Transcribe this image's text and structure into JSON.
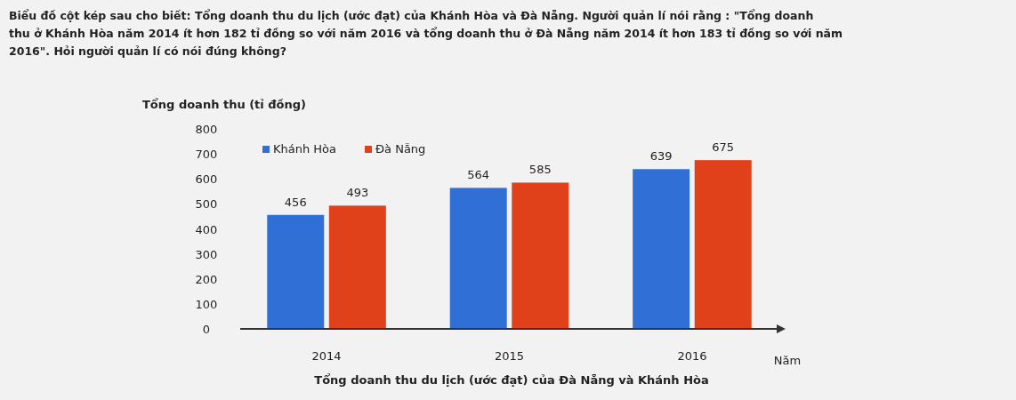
{
  "chart_data": {
    "type": "bar",
    "title": "Biểu đồ cột kép sau cho biết:  Tổng doanh thu du lịch (ước đạt) của Khánh Hòa và Đà Nẵng. Người quản lí nói rằng : \"Tổng doanh thu ở Khánh Hòa năm 2014 ít hơn 182 tỉ đồng so với năm 2016 và tổng doanh thu ở Đà Nẵng năm 2014 ít hơn 183 tỉ đồng so với năm 2016\". Hỏi người quản lí có nói đúng không?",
    "ylabel": "Tổng doanh thu (tỉ đồng)",
    "xlabel": "Năm",
    "annotations": [
      "Tổng doanh thu du lịch (ước đạt) của Đà Nẵng và Khánh Hòa"
    ],
    "categories": [
      "2014",
      "2015",
      "2016"
    ],
    "series": [
      {
        "name": "Khánh Hòa",
        "color": "#2f6fd6",
        "values": [
          456,
          564,
          639
        ]
      },
      {
        "name": "Đà Nẵng",
        "color": "#e0401a",
        "values": [
          493,
          585,
          675
        ]
      }
    ],
    "ylim": [
      0,
      800
    ],
    "yticks": [
      0,
      100,
      200,
      300,
      400,
      500,
      600,
      700,
      800
    ],
    "data_labels": true,
    "legend": "top left"
  }
}
